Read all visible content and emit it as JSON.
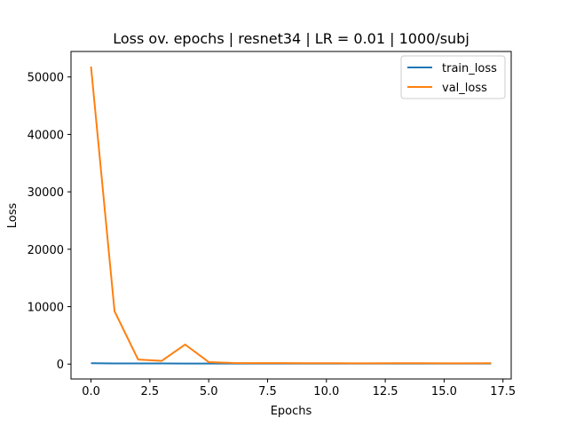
{
  "chart_data": {
    "type": "line",
    "title": "Loss ov. epochs | resnet34 | LR = 0.01 | 1000/subj",
    "xlabel": "Epochs",
    "ylabel": "Loss",
    "xlim": [
      -0.85,
      17.85
    ],
    "ylim": [
      -2590,
      54440
    ],
    "xticks": [
      0.0,
      2.5,
      5.0,
      7.5,
      10.0,
      12.5,
      15.0,
      17.5
    ],
    "xtick_labels": [
      "0.0",
      "2.5",
      "5.0",
      "7.5",
      "10.0",
      "12.5",
      "15.0",
      "17.5"
    ],
    "yticks": [
      0,
      10000,
      20000,
      30000,
      40000,
      50000
    ],
    "ytick_labels": [
      "0",
      "10000",
      "20000",
      "30000",
      "40000",
      "50000"
    ],
    "grid": false,
    "legend_placement": "top-right",
    "x": [
      0,
      1,
      2,
      3,
      4,
      5,
      6,
      7,
      8,
      9,
      10,
      11,
      12,
      13,
      14,
      15,
      16,
      17
    ],
    "series": [
      {
        "name": "train_loss",
        "color": "#1f77b4",
        "values": [
          150,
          120,
          110,
          105,
          100,
          100,
          95,
          95,
          90,
          90,
          90,
          90,
          90,
          90,
          90,
          90,
          90,
          90
        ]
      },
      {
        "name": "val_loss",
        "color": "#ff7f0e",
        "values": [
          51800,
          9200,
          800,
          550,
          3400,
          350,
          200,
          180,
          170,
          160,
          150,
          140,
          140,
          150,
          150,
          140,
          140,
          150
        ]
      }
    ]
  }
}
